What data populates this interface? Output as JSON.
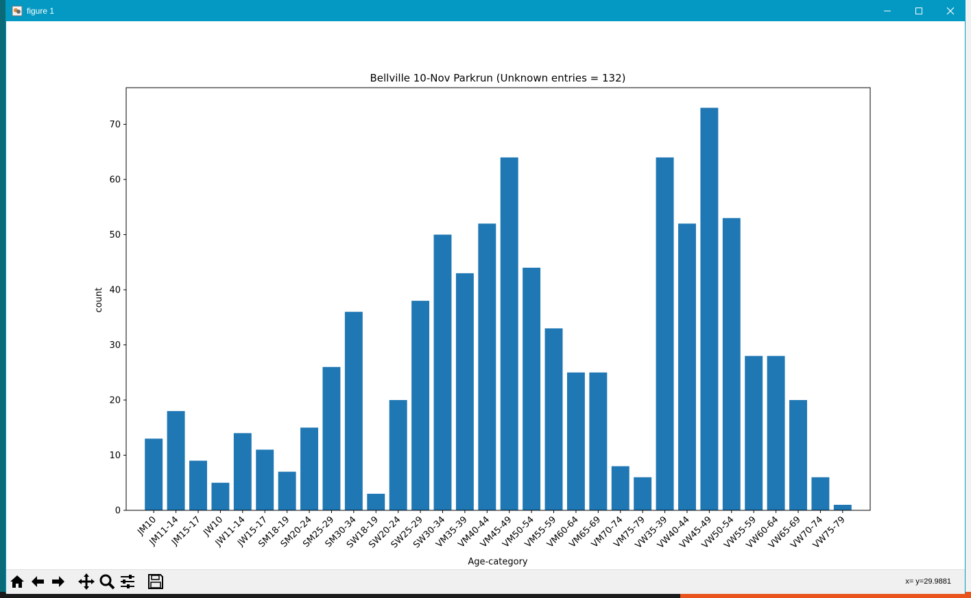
{
  "window": {
    "title": "figure 1",
    "minimize_icon": "minimize-icon",
    "maximize_icon": "maximize-icon",
    "close_icon": "close-icon"
  },
  "toolbar": {
    "buttons": [
      "home-icon",
      "back-arrow-icon",
      "forward-arrow-icon",
      "pan-icon",
      "zoom-icon",
      "configure-subplots-icon",
      "save-icon"
    ],
    "coords": "x= y=29.9881"
  },
  "colors": {
    "bar": "#1f77b4",
    "titlebar": "#0399c2"
  },
  "chart_data": {
    "type": "bar",
    "title": "Bellville 10-Nov Parkrun (Unknown entries = 132)",
    "xlabel": "Age-category",
    "ylabel": "count",
    "ylim": [
      0,
      76.65
    ],
    "yticks": [
      0,
      10,
      20,
      30,
      40,
      50,
      60,
      70
    ],
    "categories": [
      "JM10",
      "JM11-14",
      "JM15-17",
      "JW10",
      "JW11-14",
      "JW15-17",
      "SM18-19",
      "SM20-24",
      "SM25-29",
      "SM30-34",
      "SW18-19",
      "SW20-24",
      "SW25-29",
      "SW30-34",
      "VM35-39",
      "VM40-44",
      "VM45-49",
      "VM50-54",
      "VM55-59",
      "VM60-64",
      "VM65-69",
      "VM70-74",
      "VM75-79",
      "VW35-39",
      "VW40-44",
      "VW45-49",
      "VW50-54",
      "VW55-59",
      "VW60-64",
      "VW65-69",
      "VW70-74",
      "VW75-79"
    ],
    "values": [
      13,
      18,
      9,
      5,
      14,
      11,
      7,
      15,
      26,
      36,
      3,
      20,
      38,
      50,
      43,
      52,
      64,
      44,
      33,
      25,
      25,
      8,
      6,
      64,
      52,
      73,
      53,
      28,
      28,
      20,
      6,
      1
    ],
    "grid": false,
    "legend": "none"
  }
}
